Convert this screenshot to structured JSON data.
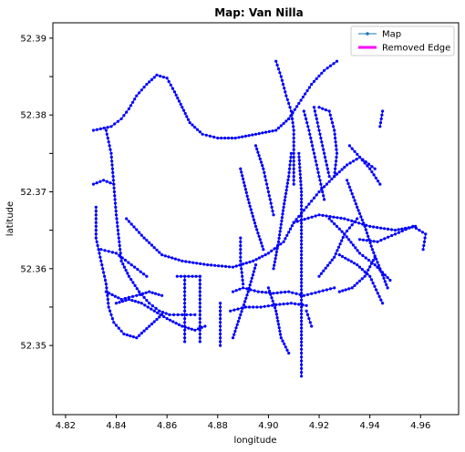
{
  "chart_data": {
    "type": "line",
    "title": "Map: Van Nilla",
    "xlabel": "longitude",
    "ylabel": "latitude",
    "xlim": [
      4.815,
      4.975
    ],
    "ylim": [
      52.341,
      52.392
    ],
    "xticks": [
      4.82,
      4.84,
      4.86,
      4.88,
      4.9,
      4.92,
      4.94,
      4.96
    ],
    "xtick_labels": [
      "4.82",
      "4.84",
      "4.86",
      "4.88",
      "4.90",
      "4.92",
      "4.94",
      "4.96"
    ],
    "yticks": [
      52.35,
      52.355,
      52.36,
      52.365,
      52.37,
      52.375,
      52.38,
      52.385,
      52.39
    ],
    "ytick_labels": [
      "52.35",
      "",
      "52.36",
      "",
      "52.37",
      "",
      "52.38",
      "",
      "52.39"
    ],
    "grid": false,
    "legend": {
      "position": "top-right",
      "entries": [
        {
          "label": "Map",
          "color": "#1f77b4",
          "style": "line-marker"
        },
        {
          "label": "Removed Edge",
          "color": "#ff00ff",
          "style": "thick-line"
        }
      ]
    },
    "series": [
      {
        "name": "Map",
        "color": "#0000ff",
        "polylines": [
          [
            [
              4.831,
              52.378
            ],
            [
              4.838,
              52.3785
            ],
            [
              4.842,
              52.3795
            ],
            [
              4.845,
              52.3808
            ],
            [
              4.848,
              52.3825
            ],
            [
              4.852,
              52.384
            ],
            [
              4.856,
              52.3852
            ],
            [
              4.86,
              52.3848
            ],
            [
              4.863,
              52.383
            ],
            [
              4.866,
              52.381
            ],
            [
              4.869,
              52.379
            ],
            [
              4.874,
              52.3775
            ],
            [
              4.88,
              52.377
            ],
            [
              4.887,
              52.377
            ],
            [
              4.895,
              52.3775
            ],
            [
              4.903,
              52.378
            ],
            [
              4.908,
              52.3795
            ]
          ],
          [
            [
              4.908,
              52.3795
            ],
            [
              4.912,
              52.3815
            ],
            [
              4.917,
              52.384
            ],
            [
              4.922,
              52.3858
            ],
            [
              4.927,
              52.387
            ]
          ],
          [
            [
              4.903,
              52.387
            ],
            [
              4.905,
              52.385
            ],
            [
              4.907,
              52.3825
            ],
            [
              4.909,
              52.3805
            ],
            [
              4.91,
              52.378
            ],
            [
              4.91,
              52.375
            ],
            [
              4.91,
              52.371
            ]
          ],
          [
            [
              4.836,
              52.378
            ],
            [
              4.838,
              52.375
            ],
            [
              4.839,
              52.371
            ],
            [
              4.84,
              52.367
            ],
            [
              4.841,
              52.364
            ],
            [
              4.842,
              52.361
            ],
            [
              4.845,
              52.359
            ],
            [
              4.849,
              52.357
            ],
            [
              4.853,
              52.3555
            ],
            [
              4.857,
              52.3545
            ],
            [
              4.861,
              52.354
            ],
            [
              4.866,
              52.354
            ],
            [
              4.871,
              52.354
            ]
          ],
          [
            [
              4.832,
              52.368
            ],
            [
              4.832,
              52.364
            ],
            [
              4.834,
              52.361
            ],
            [
              4.836,
              52.358
            ],
            [
              4.837,
              52.355
            ],
            [
              4.839,
              52.353
            ],
            [
              4.843,
              52.3515
            ],
            [
              4.848,
              52.351
            ],
            [
              4.853,
              52.3525
            ],
            [
              4.858,
              52.354
            ]
          ],
          [
            [
              4.831,
              52.371
            ],
            [
              4.835,
              52.3715
            ],
            [
              4.839,
              52.371
            ]
          ],
          [
            [
              4.84,
              52.3555
            ],
            [
              4.845,
              52.356
            ],
            [
              4.85,
              52.3555
            ],
            [
              4.855,
              52.3545
            ],
            [
              4.86,
              52.3535
            ],
            [
              4.866,
              52.3525
            ],
            [
              4.871,
              52.352
            ],
            [
              4.875,
              52.3525
            ]
          ],
          [
            [
              4.867,
              52.359
            ],
            [
              4.867,
              52.3545
            ],
            [
              4.867,
              52.3505
            ]
          ],
          [
            [
              4.873,
              52.359
            ],
            [
              4.873,
              52.3545
            ],
            [
              4.873,
              52.3505
            ]
          ],
          [
            [
              4.864,
              52.359
            ],
            [
              4.873,
              52.359
            ]
          ],
          [
            [
              4.836,
              52.357
            ],
            [
              4.842,
              52.356
            ],
            [
              4.848,
              52.3565
            ],
            [
              4.853,
              52.357
            ],
            [
              4.858,
              52.3565
            ]
          ],
          [
            [
              4.834,
              52.3625
            ],
            [
              4.84,
              52.362
            ],
            [
              4.846,
              52.3605
            ],
            [
              4.852,
              52.359
            ]
          ],
          [
            [
              4.844,
              52.3665
            ],
            [
              4.851,
              52.364
            ],
            [
              4.858,
              52.3618
            ],
            [
              4.866,
              52.361
            ],
            [
              4.876,
              52.3605
            ],
            [
              4.886,
              52.3602
            ],
            [
              4.894,
              52.361
            ],
            [
              4.9,
              52.362
            ],
            [
              4.906,
              52.3635
            ],
            [
              4.91,
              52.366
            ]
          ],
          [
            [
              4.91,
              52.366
            ],
            [
              4.915,
              52.368
            ],
            [
              4.92,
              52.37
            ],
            [
              4.926,
              52.372
            ],
            [
              4.931,
              52.3735
            ],
            [
              4.936,
              52.3745
            ],
            [
              4.942,
              52.373
            ]
          ],
          [
            [
              4.91,
              52.366
            ],
            [
              4.92,
              52.367
            ],
            [
              4.93,
              52.3665
            ],
            [
              4.94,
              52.3655
            ],
            [
              4.95,
              52.365
            ],
            [
              4.958,
              52.3655
            ]
          ],
          [
            [
              4.902,
              52.36
            ],
            [
              4.904,
              52.3635
            ],
            [
              4.906,
              52.368
            ],
            [
              4.908,
              52.372
            ],
            [
              4.909,
              52.375
            ]
          ],
          [
            [
              4.912,
              52.375
            ],
            [
              4.913,
              52.37
            ],
            [
              4.913,
              52.365
            ],
            [
              4.913,
              52.36
            ],
            [
              4.913,
              52.355
            ],
            [
              4.913,
              52.35
            ],
            [
              4.913,
              52.346
            ]
          ],
          [
            [
              4.886,
              52.357
            ],
            [
              4.89,
              52.3575
            ],
            [
              4.896,
              52.357
            ],
            [
              4.902,
              52.3568
            ],
            [
              4.908,
              52.357
            ],
            [
              4.914,
              52.3565
            ],
            [
              4.92,
              52.357
            ],
            [
              4.926,
              52.3575
            ]
          ],
          [
            [
              4.885,
              52.3545
            ],
            [
              4.891,
              52.355
            ],
            [
              4.897,
              52.355
            ],
            [
              4.903,
              52.3553
            ],
            [
              4.909,
              52.3555
            ],
            [
              4.915,
              52.3552
            ]
          ],
          [
            [
              4.881,
              52.3555
            ],
            [
              4.881,
              52.3525
            ],
            [
              4.881,
              52.35
            ]
          ],
          [
            [
              4.886,
              52.351
            ],
            [
              4.889,
              52.354
            ],
            [
              4.892,
              52.357
            ],
            [
              4.895,
              52.3605
            ]
          ],
          [
            [
              4.889,
              52.364
            ],
            [
              4.889,
              52.361
            ],
            [
              4.89,
              52.358
            ]
          ],
          [
            [
              4.895,
              52.376
            ],
            [
              4.898,
              52.373
            ],
            [
              4.9,
              52.37
            ],
            [
              4.902,
              52.367
            ]
          ],
          [
            [
              4.889,
              52.373
            ],
            [
              4.892,
              52.369
            ],
            [
              4.895,
              52.3655
            ],
            [
              4.898,
              52.3625
            ]
          ],
          [
            [
              4.914,
              52.3805
            ],
            [
              4.916,
              52.378
            ],
            [
              4.918,
              52.375
            ],
            [
              4.92,
              52.372
            ],
            [
              4.922,
              52.369
            ]
          ],
          [
            [
              4.918,
              52.381
            ],
            [
              4.92,
              52.378
            ],
            [
              4.922,
              52.375
            ],
            [
              4.924,
              52.372
            ]
          ],
          [
            [
              4.92,
              52.381
            ],
            [
              4.924,
              52.3805
            ],
            [
              4.926,
              52.378
            ],
            [
              4.927,
              52.375
            ],
            [
              4.926,
              52.372
            ]
          ],
          [
            [
              4.931,
              52.3715
            ],
            [
              4.935,
              52.368
            ],
            [
              4.938,
              52.3655
            ],
            [
              4.941,
              52.3625
            ],
            [
              4.944,
              52.36
            ],
            [
              4.947,
              52.3575
            ]
          ],
          [
            [
              4.932,
              52.376
            ],
            [
              4.936,
              52.3745
            ],
            [
              4.94,
              52.373
            ],
            [
              4.944,
              52.371
            ]
          ],
          [
            [
              4.945,
              52.3805
            ],
            [
              4.944,
              52.3785
            ]
          ],
          [
            [
              4.936,
              52.3638
            ],
            [
              4.943,
              52.3635
            ],
            [
              4.95,
              52.3645
            ],
            [
              4.957,
              52.3655
            ],
            [
              4.962,
              52.3645
            ],
            [
              4.961,
              52.3625
            ]
          ],
          [
            [
              4.928,
              52.357
            ],
            [
              4.933,
              52.3575
            ],
            [
              4.938,
              52.359
            ],
            [
              4.942,
              52.3615
            ]
          ],
          [
            [
              4.92,
              52.359
            ],
            [
              4.926,
              52.3615
            ],
            [
              4.93,
              52.3645
            ],
            [
              4.935,
              52.3665
            ]
          ],
          [
            [
              4.9,
              52.3575
            ],
            [
              4.903,
              52.3545
            ],
            [
              4.905,
              52.351
            ],
            [
              4.908,
              52.349
            ]
          ],
          [
            [
              4.917,
              52.3525
            ],
            [
              4.915,
              52.3545
            ]
          ],
          [
            [
              4.928,
              52.3618
            ],
            [
              4.935,
              52.3605
            ],
            [
              4.94,
              52.359
            ],
            [
              4.945,
              52.3555
            ]
          ],
          [
            [
              4.924,
              52.3665
            ],
            [
              4.93,
              52.3645
            ],
            [
              4.936,
              52.362
            ],
            [
              4.942,
              52.3605
            ],
            [
              4.948,
              52.3585
            ]
          ]
        ]
      },
      {
        "name": "Removed Edge",
        "color": "#ff00ff",
        "polylines": []
      }
    ]
  }
}
